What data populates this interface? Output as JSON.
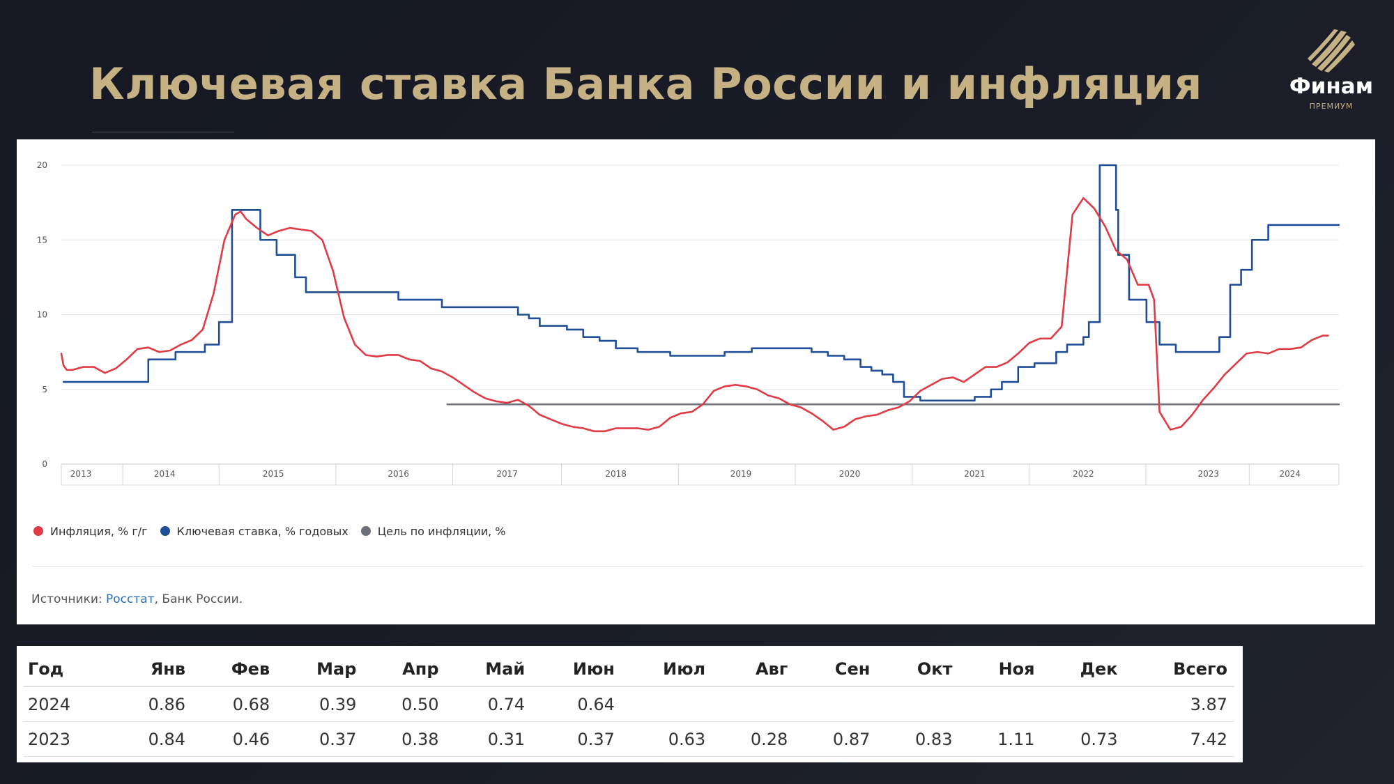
{
  "header": {
    "title": "Ключевая ставка Банка России и инфляция",
    "logo_word": "Финам",
    "logo_sub": "ПРЕМИУМ"
  },
  "colors": {
    "accent_gold": "#c6b184",
    "inflation": "#e03a45",
    "key_rate": "#1f4e96",
    "target": "#6d6f78"
  },
  "chart_data": {
    "type": "line",
    "title": "",
    "xlabel": "",
    "ylabel": "",
    "ylim": [
      0,
      20
    ],
    "xlim": [
      2012.9,
      2024.65
    ],
    "yticks": [
      "0",
      "5",
      "10",
      "15",
      "20"
    ],
    "xticks": [
      {
        "label": "2013",
        "x": 2013.08
      },
      {
        "label": "2014",
        "x": 2013.85
      },
      {
        "label": "2015",
        "x": 2014.85
      },
      {
        "label": "2016",
        "x": 2016.0
      },
      {
        "label": "2017",
        "x": 2017.0
      },
      {
        "label": "2018",
        "x": 2018.0
      },
      {
        "label": "2019",
        "x": 2019.15
      },
      {
        "label": "2020",
        "x": 2020.15
      },
      {
        "label": "2021",
        "x": 2021.3
      },
      {
        "label": "2022",
        "x": 2022.3
      },
      {
        "label": "2023",
        "x": 2023.45
      },
      {
        "label": "2024",
        "x": 2024.2
      }
    ],
    "grid": "horizontal",
    "legend_position": "bottom-left",
    "series": [
      {
        "name": "Инфляция, % г/г",
        "color": "#e03a45",
        "kind": "line",
        "x": [
          2012.9,
          2012.92,
          2012.95,
          2013.0,
          2013.1,
          2013.2,
          2013.3,
          2013.4,
          2013.5,
          2013.6,
          2013.7,
          2013.8,
          2013.9,
          2014.0,
          2014.1,
          2014.2,
          2014.3,
          2014.4,
          2014.5,
          2014.55,
          2014.6,
          2014.7,
          2014.8,
          2014.9,
          2015.0,
          2015.1,
          2015.2,
          2015.3,
          2015.4,
          2015.5,
          2015.6,
          2015.7,
          2015.8,
          2015.9,
          2016.0,
          2016.1,
          2016.2,
          2016.3,
          2016.4,
          2016.5,
          2016.6,
          2016.7,
          2016.8,
          2016.9,
          2017.0,
          2017.1,
          2017.2,
          2017.3,
          2017.4,
          2017.5,
          2017.6,
          2017.7,
          2017.8,
          2017.9,
          2018.0,
          2018.1,
          2018.2,
          2018.3,
          2018.4,
          2018.5,
          2018.6,
          2018.7,
          2018.8,
          2018.9,
          2019.0,
          2019.1,
          2019.2,
          2019.3,
          2019.4,
          2019.5,
          2019.6,
          2019.7,
          2019.8,
          2019.9,
          2020.0,
          2020.1,
          2020.2,
          2020.3,
          2020.4,
          2020.5,
          2020.6,
          2020.7,
          2020.8,
          2020.9,
          2021.0,
          2021.1,
          2021.2,
          2021.3,
          2021.4,
          2021.5,
          2021.6,
          2021.7,
          2021.8,
          2021.9,
          2022.0,
          2022.05,
          2022.1,
          2022.2,
          2022.3,
          2022.4,
          2022.5,
          2022.6,
          2022.7,
          2022.8,
          2022.9,
          2022.95,
          2023.0,
          2023.1,
          2023.2,
          2023.3,
          2023.4,
          2023.5,
          2023.6,
          2023.7,
          2023.8,
          2023.9,
          2024.0,
          2024.1,
          2024.2,
          2024.3,
          2024.4,
          2024.5,
          2024.55
        ],
        "values": [
          7.4,
          6.6,
          6.3,
          6.3,
          6.5,
          6.5,
          6.1,
          6.4,
          7.0,
          7.7,
          7.8,
          7.5,
          7.6,
          8.0,
          8.3,
          9.0,
          11.4,
          15.0,
          16.7,
          16.9,
          16.4,
          15.8,
          15.3,
          15.6,
          15.8,
          15.7,
          15.6,
          15.0,
          12.9,
          9.8,
          8.0,
          7.3,
          7.2,
          7.3,
          7.3,
          7.0,
          6.9,
          6.4,
          6.2,
          5.8,
          5.3,
          4.8,
          4.4,
          4.2,
          4.1,
          4.3,
          3.9,
          3.3,
          3.0,
          2.7,
          2.5,
          2.4,
          2.2,
          2.2,
          2.4,
          2.4,
          2.4,
          2.3,
          2.5,
          3.1,
          3.4,
          3.5,
          4.0,
          4.9,
          5.2,
          5.3,
          5.2,
          5.0,
          4.6,
          4.4,
          4.0,
          3.8,
          3.4,
          2.9,
          2.3,
          2.5,
          3.0,
          3.2,
          3.3,
          3.6,
          3.8,
          4.2,
          4.9,
          5.3,
          5.7,
          5.8,
          5.5,
          6.0,
          6.5,
          6.5,
          6.8,
          7.4,
          8.1,
          8.4,
          8.4,
          8.8,
          9.2,
          16.7,
          17.8,
          17.1,
          15.9,
          14.3,
          13.7,
          12.0,
          12.0,
          11.0,
          3.5,
          2.3,
          2.5,
          3.3,
          4.3,
          5.1,
          6.0,
          6.7,
          7.4,
          7.5,
          7.4,
          7.7,
          7.7,
          7.8,
          8.3,
          8.6,
          8.6
        ]
      },
      {
        "name": "Ключевая ставка, % годовых",
        "color": "#1f4e96",
        "kind": "step",
        "x": [
          2012.92,
          2013.4,
          2013.58,
          2013.7,
          2013.95,
          2014.22,
          2014.35,
          2014.47,
          2014.58,
          2014.73,
          2014.88,
          2015.05,
          2015.15,
          2016.0,
          2016.3,
          2016.4,
          2016.55,
          2017.1,
          2017.2,
          2017.3,
          2017.55,
          2017.7,
          2017.85,
          2018.0,
          2018.2,
          2018.5,
          2018.75,
          2019.0,
          2019.25,
          2019.4,
          2019.55,
          2019.65,
          2019.8,
          2019.95,
          2020.1,
          2020.25,
          2020.35,
          2020.45,
          2020.55,
          2020.65,
          2020.8,
          2020.9,
          2021.0,
          2021.1,
          2021.2,
          2021.3,
          2021.45,
          2021.55,
          2021.7,
          2021.85,
          2022.05,
          2022.15,
          2022.3,
          2022.35,
          2022.45,
          2022.55,
          2022.6,
          2022.62,
          2022.72,
          2022.88,
          2023.0,
          2023.15,
          2023.4,
          2023.45,
          2023.5,
          2023.55,
          2023.65,
          2023.75,
          2023.85,
          2024.0,
          2024.2,
          2024.65
        ],
        "values": [
          5.5,
          5.5,
          5.5,
          7.0,
          7.5,
          8.0,
          9.5,
          17.0,
          17.0,
          15.0,
          14.0,
          12.5,
          11.5,
          11.0,
          11.0,
          10.5,
          10.5,
          10.0,
          9.75,
          9.25,
          9.0,
          8.5,
          8.25,
          7.75,
          7.5,
          7.25,
          7.25,
          7.5,
          7.75,
          7.75,
          7.75,
          7.75,
          7.5,
          7.25,
          7.0,
          6.5,
          6.25,
          6.0,
          5.5,
          4.5,
          4.25,
          4.25,
          4.25,
          4.25,
          4.25,
          4.5,
          5.0,
          5.5,
          6.5,
          6.75,
          7.5,
          8.0,
          8.5,
          9.5,
          20.0,
          20.0,
          17.0,
          14.0,
          11.0,
          9.5,
          8.0,
          7.5,
          7.5,
          7.5,
          7.5,
          8.5,
          12.0,
          13.0,
          15.0,
          16.0,
          16.0,
          16.0
        ]
      },
      {
        "name": "Цель по инфляции, %",
        "color": "#6d6f78",
        "kind": "line",
        "x": [
          2016.45,
          2024.65
        ],
        "values": [
          4.0,
          4.0
        ]
      }
    ]
  },
  "legend": {
    "items": [
      {
        "label": "Инфляция, % г/г",
        "color": "#e03a45"
      },
      {
        "label": "Ключевая ставка, % годовых",
        "color": "#1f4e96"
      },
      {
        "label": "Цель по инфляции, %",
        "color": "#6d6f78"
      }
    ]
  },
  "sources": {
    "prefix": "Источники: ",
    "link": "Росстат",
    "suffix": ", Банк России."
  },
  "table": {
    "headers": [
      "Год",
      "Янв",
      "Фев",
      "Мар",
      "Апр",
      "Май",
      "Июн",
      "Июл",
      "Авг",
      "Сен",
      "Окт",
      "Ноя",
      "Дек",
      "Всего"
    ],
    "rows": [
      [
        "2024",
        "0.86",
        "0.68",
        "0.39",
        "0.50",
        "0.74",
        "0.64",
        "",
        "",
        "",
        "",
        "",
        "",
        "3.87"
      ],
      [
        "2023",
        "0.84",
        "0.46",
        "0.37",
        "0.38",
        "0.31",
        "0.37",
        "0.63",
        "0.28",
        "0.87",
        "0.83",
        "1.11",
        "0.73",
        "7.42"
      ]
    ]
  }
}
